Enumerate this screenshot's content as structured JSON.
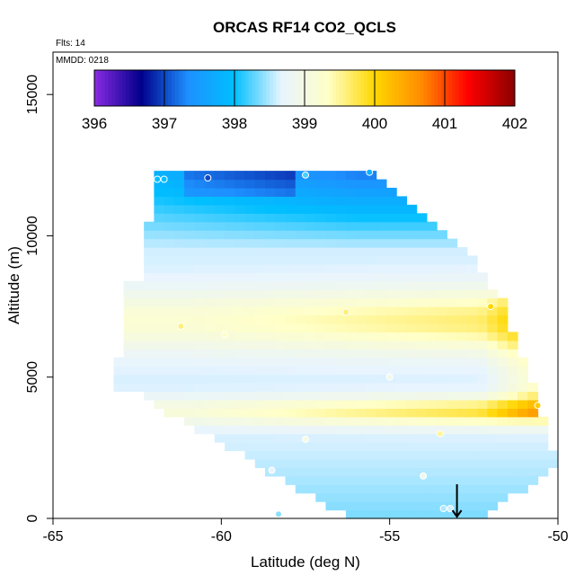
{
  "chart_data": {
    "type": "heatmap",
    "title": "ORCAS RF14 CO2_QCLS",
    "notes": {
      "flights": "Flts: 14",
      "mmdd": "MMDD: 0218"
    },
    "xlabel": "Latitude (deg N)",
    "ylabel": "Altitude (m)",
    "xlim": [
      -65,
      -50
    ],
    "ylim": [
      0,
      16500
    ],
    "x_ticks": [
      -65,
      -60,
      -55,
      -50
    ],
    "x_tick_labels": [
      "-65",
      "-60",
      "-55",
      "-50"
    ],
    "y_ticks": [
      0,
      5000,
      10000,
      15000
    ],
    "y_tick_labels": [
      "0",
      "5000",
      "10000",
      "15000"
    ],
    "colorbar": {
      "min": 396,
      "max": 402,
      "ticks": [
        396,
        397,
        398,
        399,
        400,
        401,
        402
      ],
      "tick_labels": [
        "396",
        "397",
        "398",
        "399",
        "400",
        "401",
        "402"
      ],
      "colors": [
        "#8a2be2",
        "#00008b",
        "#1e90ff",
        "#00bfff",
        "#e8f4ff",
        "#ffffc8",
        "#ffd700",
        "#ff8c00",
        "#ff0000",
        "#8b0000"
      ]
    },
    "field": {
      "cell_lat": 0.3,
      "cell_alt": 300,
      "lat_range": [
        -63.2,
        -50.0
      ],
      "alt_range": [
        0,
        12300
      ],
      "background_value": 398.6,
      "features": [
        {
          "name": "upper-low-band",
          "alt_top": 12300,
          "value": 397.2
        },
        {
          "name": "mid-yellow-band",
          "alt": 7000,
          "value": 399.7
        },
        {
          "name": "lower-yellow-band",
          "alt": 3800,
          "value": 399.9
        }
      ]
    },
    "samples": [
      {
        "lat": -61.9,
        "alt": 12000,
        "value": 398.0
      },
      {
        "lat": -61.7,
        "alt": 12000,
        "value": 398.0
      },
      {
        "lat": -60.4,
        "alt": 12050,
        "value": 397.0
      },
      {
        "lat": -57.5,
        "alt": 12150,
        "value": 398.2
      },
      {
        "lat": -55.6,
        "alt": 12250,
        "value": 397.8
      },
      {
        "lat": -56.3,
        "alt": 7300,
        "value": 399.6
      },
      {
        "lat": -52.0,
        "alt": 7500,
        "value": 400.0
      },
      {
        "lat": -61.2,
        "alt": 6800,
        "value": 399.6
      },
      {
        "lat": -59.9,
        "alt": 6500,
        "value": 399.3
      },
      {
        "lat": -55.0,
        "alt": 5000,
        "value": 398.9
      },
      {
        "lat": -50.6,
        "alt": 4000,
        "value": 400.1
      },
      {
        "lat": -53.5,
        "alt": 3000,
        "value": 399.5
      },
      {
        "lat": -57.5,
        "alt": 2800,
        "value": 399.0
      },
      {
        "lat": -58.5,
        "alt": 1700,
        "value": 398.7
      },
      {
        "lat": -54.0,
        "alt": 1500,
        "value": 398.9
      },
      {
        "lat": -53.4,
        "alt": 350,
        "value": 398.5
      },
      {
        "lat": -53.2,
        "alt": 350,
        "value": 398.6
      },
      {
        "lat": -58.3,
        "alt": 150,
        "value": 398.4
      }
    ],
    "marker": {
      "type": "arrow-down",
      "lat": -53.0,
      "alt": 700
    }
  }
}
